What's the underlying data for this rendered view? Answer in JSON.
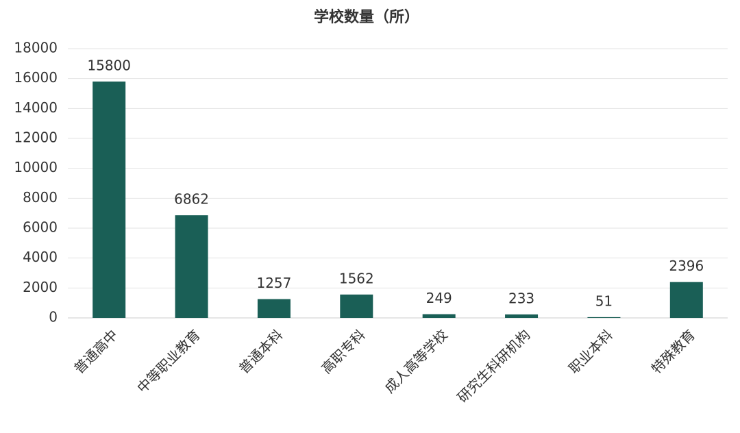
{
  "chart_data": {
    "type": "bar",
    "title": "学校数量（所）",
    "categories": [
      "普通高中",
      "中等职业教育",
      "普通本科",
      "高职专科",
      "成人高等学校",
      "研究生科研机构",
      "职业本科",
      "特殊教育"
    ],
    "values": [
      15800,
      6862,
      1257,
      1562,
      249,
      233,
      51,
      2396
    ],
    "color": "#1a5f56",
    "ylim": [
      0,
      18000
    ],
    "yticks": [
      0,
      2000,
      4000,
      6000,
      8000,
      10000,
      12000,
      14000,
      16000,
      18000
    ],
    "grid": true
  }
}
